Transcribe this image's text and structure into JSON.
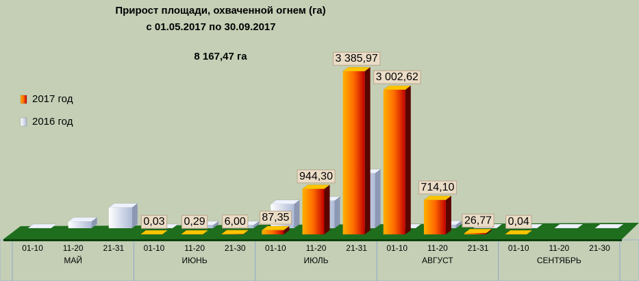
{
  "chart_data": {
    "type": "bar3d",
    "title": "Прирост площади, охваченной огнем (га)",
    "subtitle": "с 01.05.2017  по  30.09.2017",
    "annotation": "8 167,47 га",
    "categories": [
      "01-10",
      "11-20",
      "21-31",
      "01-10",
      "11-20",
      "21-30",
      "01-10",
      "11-20",
      "21-31",
      "01-10",
      "11-20",
      "21-31",
      "01-10",
      "11-20",
      "21-30"
    ],
    "months": [
      "МАЙ",
      "ИЮНЬ",
      "ИЮЛЬ",
      "АВГУСТ",
      "СЕНТЯБРЬ"
    ],
    "series": [
      {
        "name": "2017 год",
        "color": "#e04000",
        "values": [
          null,
          null,
          null,
          0.03,
          0.29,
          6.0,
          87.35,
          944.3,
          3385.97,
          3002.62,
          714.1,
          26.77,
          0.04,
          null,
          null
        ],
        "value_labels": [
          null,
          null,
          null,
          "0,03",
          "0,29",
          "6,00",
          "87,35",
          "944,30",
          "3 385,97",
          "3 002,62",
          "714,10",
          "26,77",
          "0,04",
          null,
          null
        ]
      },
      {
        "name": "2016 год",
        "color": "#c8d2ea",
        "values": [
          0,
          140,
          430,
          0,
          60,
          60,
          500,
          570,
          1140,
          0,
          70,
          0,
          0,
          0,
          0
        ]
      }
    ],
    "legend": "left"
  }
}
